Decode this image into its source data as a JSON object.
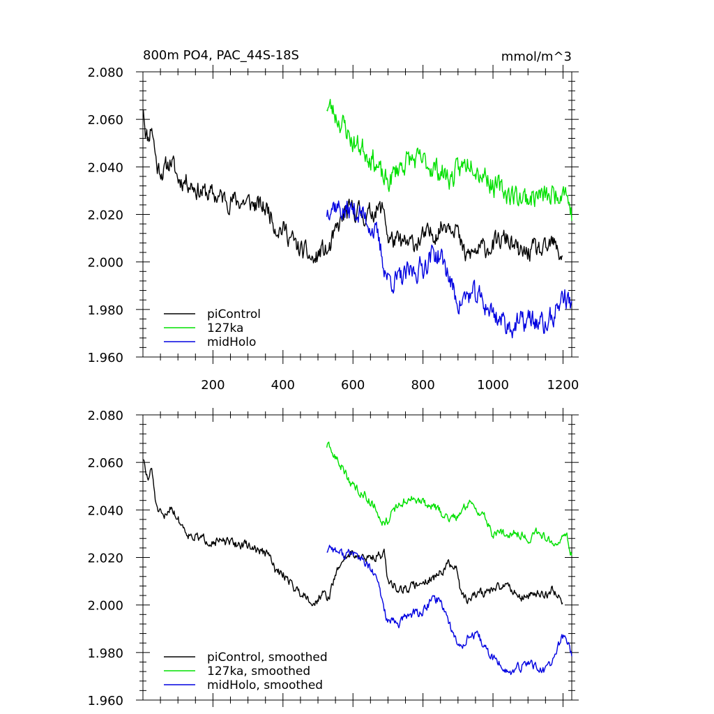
{
  "chart_data": [
    {
      "type": "line",
      "title": "800m PO4, PAC_44S-18S",
      "units": "mmol/m^3",
      "xlim": [
        0,
        1225
      ],
      "ylim": [
        1.96,
        2.08
      ],
      "xticks": [
        200,
        400,
        600,
        800,
        1000,
        1200
      ],
      "xtick_labels": [
        "200",
        "400",
        "600",
        "800",
        "1000",
        "1200"
      ],
      "yticks": [
        1.96,
        1.98,
        2.0,
        2.02,
        2.04,
        2.06,
        2.08
      ],
      "ytick_labels": [
        "1.960",
        "1.980",
        "2.000",
        "2.020",
        "2.040",
        "2.060",
        "2.080"
      ],
      "legend_position": "bottom-left",
      "series": [
        {
          "name": "piControl",
          "color": "#000000",
          "noise": 0.0035,
          "seed": 11,
          "keypoints": [
            [
              1,
              2.066
            ],
            [
              8,
              2.055
            ],
            [
              15,
              2.052
            ],
            [
              25,
              2.058
            ],
            [
              40,
              2.04
            ],
            [
              60,
              2.038
            ],
            [
              80,
              2.043
            ],
            [
              100,
              2.035
            ],
            [
              130,
              2.034
            ],
            [
              160,
              2.03
            ],
            [
              200,
              2.028
            ],
            [
              250,
              2.026
            ],
            [
              300,
              2.025
            ],
            [
              360,
              2.022
            ],
            [
              380,
              2.015
            ],
            [
              410,
              2.013
            ],
            [
              440,
              2.006
            ],
            [
              470,
              2.003
            ],
            [
              490,
              2.0
            ],
            [
              510,
              2.005
            ],
            [
              530,
              2.004
            ],
            [
              545,
              2.01
            ],
            [
              560,
              2.015
            ],
            [
              575,
              2.02
            ],
            [
              600,
              2.022
            ],
            [
              620,
              2.021
            ],
            [
              640,
              2.019
            ],
            [
              660,
              2.022
            ],
            [
              690,
              2.022
            ],
            [
              700,
              2.01
            ],
            [
              730,
              2.008
            ],
            [
              760,
              2.007
            ],
            [
              800,
              2.01
            ],
            [
              840,
              2.013
            ],
            [
              870,
              2.017
            ],
            [
              895,
              2.016
            ],
            [
              905,
              2.008
            ],
            [
              920,
              2.002
            ],
            [
              960,
              2.005
            ],
            [
              1000,
              2.007
            ],
            [
              1040,
              2.01
            ],
            [
              1060,
              2.006
            ],
            [
              1080,
              2.003
            ],
            [
              1120,
              2.005
            ],
            [
              1150,
              2.004
            ],
            [
              1170,
              2.008
            ],
            [
              1190,
              2.003
            ],
            [
              1200,
              2.004
            ]
          ]
        },
        {
          "name": "127ka",
          "color": "#00e000",
          "noise": 0.004,
          "seed": 23,
          "keypoints": [
            [
              525,
              2.066
            ],
            [
              535,
              2.065
            ],
            [
              560,
              2.06
            ],
            [
              580,
              2.056
            ],
            [
              600,
              2.05
            ],
            [
              630,
              2.048
            ],
            [
              660,
              2.043
            ],
            [
              685,
              2.035
            ],
            [
              700,
              2.033
            ],
            [
              730,
              2.04
            ],
            [
              760,
              2.043
            ],
            [
              800,
              2.042
            ],
            [
              830,
              2.04
            ],
            [
              860,
              2.037
            ],
            [
              880,
              2.035
            ],
            [
              900,
              2.038
            ],
            [
              940,
              2.044
            ],
            [
              960,
              2.038
            ],
            [
              980,
              2.037
            ],
            [
              1000,
              2.032
            ],
            [
              1030,
              2.03
            ],
            [
              1060,
              2.028
            ],
            [
              1100,
              2.027
            ],
            [
              1130,
              2.028
            ],
            [
              1160,
              2.027
            ],
            [
              1190,
              2.03
            ],
            [
              1205,
              2.032
            ],
            [
              1215,
              2.026
            ],
            [
              1225,
              2.02
            ]
          ]
        },
        {
          "name": "midHolo",
          "color": "#0000e0",
          "noise": 0.004,
          "seed": 37,
          "keypoints": [
            [
              525,
              2.021
            ],
            [
              535,
              2.025
            ],
            [
              550,
              2.024
            ],
            [
              575,
              2.021
            ],
            [
              600,
              2.022
            ],
            [
              625,
              2.02
            ],
            [
              650,
              2.016
            ],
            [
              670,
              2.01
            ],
            [
              690,
              1.998
            ],
            [
              700,
              1.993
            ],
            [
              730,
              1.992
            ],
            [
              760,
              1.995
            ],
            [
              800,
              1.998
            ],
            [
              830,
              2.004
            ],
            [
              850,
              2.002
            ],
            [
              870,
              1.996
            ],
            [
              890,
              1.986
            ],
            [
              905,
              1.983
            ],
            [
              930,
              1.986
            ],
            [
              960,
              1.985
            ],
            [
              990,
              1.98
            ],
            [
              1020,
              1.976
            ],
            [
              1050,
              1.973
            ],
            [
              1080,
              1.974
            ],
            [
              1110,
              1.976
            ],
            [
              1130,
              1.974
            ],
            [
              1150,
              1.973
            ],
            [
              1175,
              1.978
            ],
            [
              1200,
              1.986
            ],
            [
              1215,
              1.984
            ],
            [
              1225,
              1.98
            ]
          ]
        }
      ]
    },
    {
      "type": "line",
      "title": "",
      "xlim": [
        0,
        1225
      ],
      "ylim": [
        1.96,
        2.08
      ],
      "xticks": [
        200,
        400,
        600,
        800,
        1000,
        1200
      ],
      "yticks": [
        1.96,
        1.98,
        2.0,
        2.02,
        2.04,
        2.06,
        2.08
      ],
      "ytick_labels": [
        "1.960",
        "1.980",
        "2.000",
        "2.020",
        "2.040",
        "2.060",
        "2.080"
      ],
      "legend_position": "bottom-left",
      "series": [
        {
          "name": "piControl, smoothed",
          "color": "#000000",
          "noise": 0.0016,
          "seed": 51,
          "keypoints": [
            [
              1,
              2.062
            ],
            [
              8,
              2.055
            ],
            [
              15,
              2.053
            ],
            [
              25,
              2.057
            ],
            [
              40,
              2.04
            ],
            [
              60,
              2.036
            ],
            [
              80,
              2.042
            ],
            [
              100,
              2.036
            ],
            [
              130,
              2.03
            ],
            [
              160,
              2.028
            ],
            [
              200,
              2.027
            ],
            [
              250,
              2.026
            ],
            [
              300,
              2.025
            ],
            [
              360,
              2.021
            ],
            [
              380,
              2.014
            ],
            [
              410,
              2.012
            ],
            [
              440,
              2.006
            ],
            [
              470,
              2.004
            ],
            [
              490,
              2.0
            ],
            [
              510,
              2.005
            ],
            [
              530,
              2.003
            ],
            [
              545,
              2.01
            ],
            [
              560,
              2.016
            ],
            [
              575,
              2.02
            ],
            [
              600,
              2.022
            ],
            [
              620,
              2.02
            ],
            [
              640,
              2.019
            ],
            [
              660,
              2.021
            ],
            [
              690,
              2.021
            ],
            [
              700,
              2.01
            ],
            [
              730,
              2.007
            ],
            [
              760,
              2.007
            ],
            [
              800,
              2.01
            ],
            [
              840,
              2.012
            ],
            [
              870,
              2.017
            ],
            [
              895,
              2.015
            ],
            [
              905,
              2.008
            ],
            [
              920,
              2.002
            ],
            [
              960,
              2.005
            ],
            [
              1000,
              2.006
            ],
            [
              1040,
              2.009
            ],
            [
              1060,
              2.006
            ],
            [
              1080,
              2.003
            ],
            [
              1120,
              2.005
            ],
            [
              1150,
              2.004
            ],
            [
              1170,
              2.007
            ],
            [
              1190,
              2.003
            ],
            [
              1200,
              2.002
            ]
          ]
        },
        {
          "name": "127ka, smoothed",
          "color": "#00e000",
          "noise": 0.0016,
          "seed": 63,
          "keypoints": [
            [
              525,
              2.067
            ],
            [
              535,
              2.065
            ],
            [
              560,
              2.06
            ],
            [
              580,
              2.055
            ],
            [
              600,
              2.05
            ],
            [
              630,
              2.047
            ],
            [
              660,
              2.042
            ],
            [
              685,
              2.035
            ],
            [
              700,
              2.036
            ],
            [
              730,
              2.042
            ],
            [
              760,
              2.045
            ],
            [
              800,
              2.043
            ],
            [
              830,
              2.041
            ],
            [
              860,
              2.038
            ],
            [
              880,
              2.036
            ],
            [
              900,
              2.038
            ],
            [
              940,
              2.044
            ],
            [
              960,
              2.039
            ],
            [
              980,
              2.036
            ],
            [
              1000,
              2.03
            ],
            [
              1030,
              2.03
            ],
            [
              1060,
              2.031
            ],
            [
              1100,
              2.028
            ],
            [
              1130,
              2.031
            ],
            [
              1160,
              2.027
            ],
            [
              1190,
              2.028
            ],
            [
              1205,
              2.032
            ],
            [
              1215,
              2.027
            ],
            [
              1225,
              2.021
            ]
          ]
        },
        {
          "name": "midHolo, smoothed",
          "color": "#0000e0",
          "noise": 0.0016,
          "seed": 77,
          "keypoints": [
            [
              525,
              2.023
            ],
            [
              535,
              2.025
            ],
            [
              550,
              2.023
            ],
            [
              575,
              2.021
            ],
            [
              600,
              2.022
            ],
            [
              625,
              2.019
            ],
            [
              650,
              2.015
            ],
            [
              670,
              2.01
            ],
            [
              690,
              1.998
            ],
            [
              700,
              1.993
            ],
            [
              730,
              1.992
            ],
            [
              760,
              1.996
            ],
            [
              800,
              1.997
            ],
            [
              830,
              2.003
            ],
            [
              850,
              2.002
            ],
            [
              870,
              1.995
            ],
            [
              890,
              1.986
            ],
            [
              905,
              1.982
            ],
            [
              930,
              1.987
            ],
            [
              960,
              1.986
            ],
            [
              990,
              1.979
            ],
            [
              1020,
              1.975
            ],
            [
              1050,
              1.971
            ],
            [
              1080,
              1.974
            ],
            [
              1110,
              1.976
            ],
            [
              1130,
              1.973
            ],
            [
              1150,
              1.972
            ],
            [
              1175,
              1.978
            ],
            [
              1200,
              1.987
            ],
            [
              1215,
              1.984
            ],
            [
              1225,
              1.979
            ]
          ]
        }
      ]
    }
  ]
}
